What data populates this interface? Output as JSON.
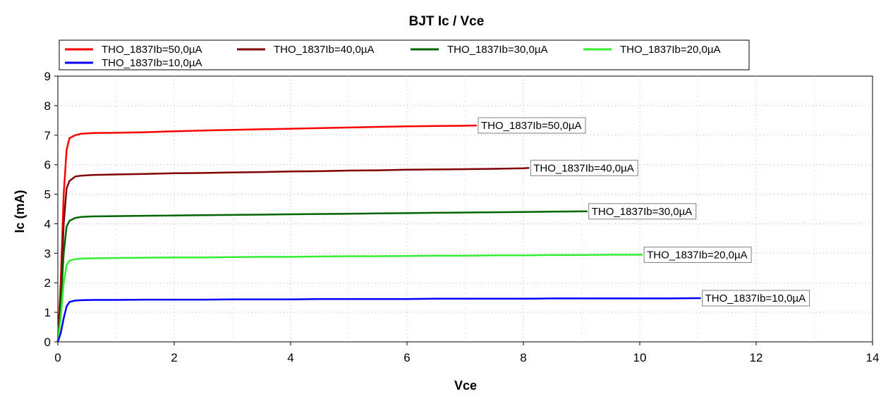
{
  "chart_data": {
    "type": "line",
    "title": "BJT Ic / Vce",
    "xlabel": "Vce",
    "ylabel": "Ic (mA)",
    "xlim": [
      0,
      14
    ],
    "ylim": [
      0,
      9
    ],
    "xticks": [
      "0",
      "2",
      "4",
      "6",
      "8",
      "10",
      "12",
      "14"
    ],
    "yticks": [
      "0",
      "1",
      "2",
      "3",
      "4",
      "5",
      "6",
      "7",
      "8",
      "9"
    ],
    "grid": true,
    "legend_position": "top",
    "series": [
      {
        "name": "THO_1837Ib=50,0µA",
        "color": "#ff0000",
        "x": [
          0,
          0.05,
          0.1,
          0.15,
          0.2,
          0.3,
          0.4,
          0.6,
          1,
          1.5,
          2,
          2.5,
          3,
          3.5,
          4,
          4.5,
          5,
          5.5,
          6,
          6.5,
          7,
          7.2
        ],
        "y": [
          0,
          2.0,
          5.0,
          6.5,
          6.9,
          7.0,
          7.05,
          7.07,
          7.08,
          7.1,
          7.13,
          7.16,
          7.18,
          7.2,
          7.22,
          7.24,
          7.26,
          7.28,
          7.3,
          7.31,
          7.32,
          7.33
        ]
      },
      {
        "name": "THO_1837Ib=40,0µA",
        "color": "#800000",
        "x": [
          0,
          0.05,
          0.1,
          0.15,
          0.2,
          0.3,
          0.4,
          0.6,
          1,
          1.5,
          2,
          2.5,
          3,
          3.5,
          4,
          4.5,
          5,
          5.5,
          6,
          6.5,
          7,
          7.5,
          8,
          8.1
        ],
        "y": [
          0,
          1.6,
          4.0,
          5.2,
          5.45,
          5.6,
          5.63,
          5.65,
          5.67,
          5.69,
          5.71,
          5.72,
          5.74,
          5.75,
          5.77,
          5.78,
          5.8,
          5.81,
          5.83,
          5.84,
          5.85,
          5.86,
          5.88,
          5.89
        ]
      },
      {
        "name": "THO_1837Ib=30,0µA",
        "color": "#006400",
        "x": [
          0,
          0.05,
          0.1,
          0.15,
          0.2,
          0.3,
          0.4,
          0.6,
          1,
          1.5,
          2,
          2.5,
          3,
          3.5,
          4,
          4.5,
          5,
          5.5,
          6,
          6.5,
          7,
          7.5,
          8,
          8.5,
          9,
          9.1
        ],
        "y": [
          0,
          1.2,
          3.0,
          3.9,
          4.1,
          4.2,
          4.23,
          4.25,
          4.26,
          4.27,
          4.28,
          4.29,
          4.3,
          4.31,
          4.32,
          4.33,
          4.34,
          4.35,
          4.36,
          4.37,
          4.38,
          4.39,
          4.4,
          4.41,
          4.42,
          4.42
        ]
      },
      {
        "name": "THO_1837Ib=20,0µA",
        "color": "#33ee33",
        "x": [
          0,
          0.05,
          0.1,
          0.15,
          0.2,
          0.3,
          0.4,
          0.6,
          1,
          1.5,
          2,
          2.5,
          3,
          3.5,
          4,
          4.5,
          5,
          5.5,
          6,
          6.5,
          7,
          7.5,
          8,
          8.5,
          9,
          9.5,
          10,
          10.05
        ],
        "y": [
          0,
          0.8,
          2.0,
          2.6,
          2.75,
          2.8,
          2.82,
          2.83,
          2.84,
          2.85,
          2.86,
          2.86,
          2.87,
          2.88,
          2.88,
          2.89,
          2.9,
          2.9,
          2.91,
          2.92,
          2.92,
          2.93,
          2.93,
          2.94,
          2.94,
          2.95,
          2.95,
          2.95
        ]
      },
      {
        "name": "THO_1837Ib=10,0µA",
        "color": "#0000ff",
        "x": [
          0,
          0.05,
          0.1,
          0.15,
          0.2,
          0.3,
          0.4,
          0.6,
          1,
          1.5,
          2,
          2.5,
          3,
          3.5,
          4,
          4.5,
          5,
          5.5,
          6,
          6.5,
          7,
          7.5,
          8,
          8.5,
          9,
          9.5,
          10,
          10.5,
          11,
          11.05
        ],
        "y": [
          0,
          0.3,
          0.8,
          1.2,
          1.35,
          1.4,
          1.41,
          1.42,
          1.42,
          1.43,
          1.43,
          1.43,
          1.44,
          1.44,
          1.44,
          1.45,
          1.45,
          1.45,
          1.45,
          1.46,
          1.46,
          1.46,
          1.46,
          1.47,
          1.47,
          1.47,
          1.47,
          1.47,
          1.48,
          1.48
        ]
      }
    ],
    "annotations": [
      {
        "text": "THO_1837Ib=50,0µA",
        "series": 0
      },
      {
        "text": "THO_1837Ib=40,0µA",
        "series": 1
      },
      {
        "text": "THO_1837Ib=30,0µA",
        "series": 2
      },
      {
        "text": "THO_1837Ib=20,0µA",
        "series": 3
      },
      {
        "text": "THO_1837Ib=10,0µA",
        "series": 4
      }
    ]
  }
}
